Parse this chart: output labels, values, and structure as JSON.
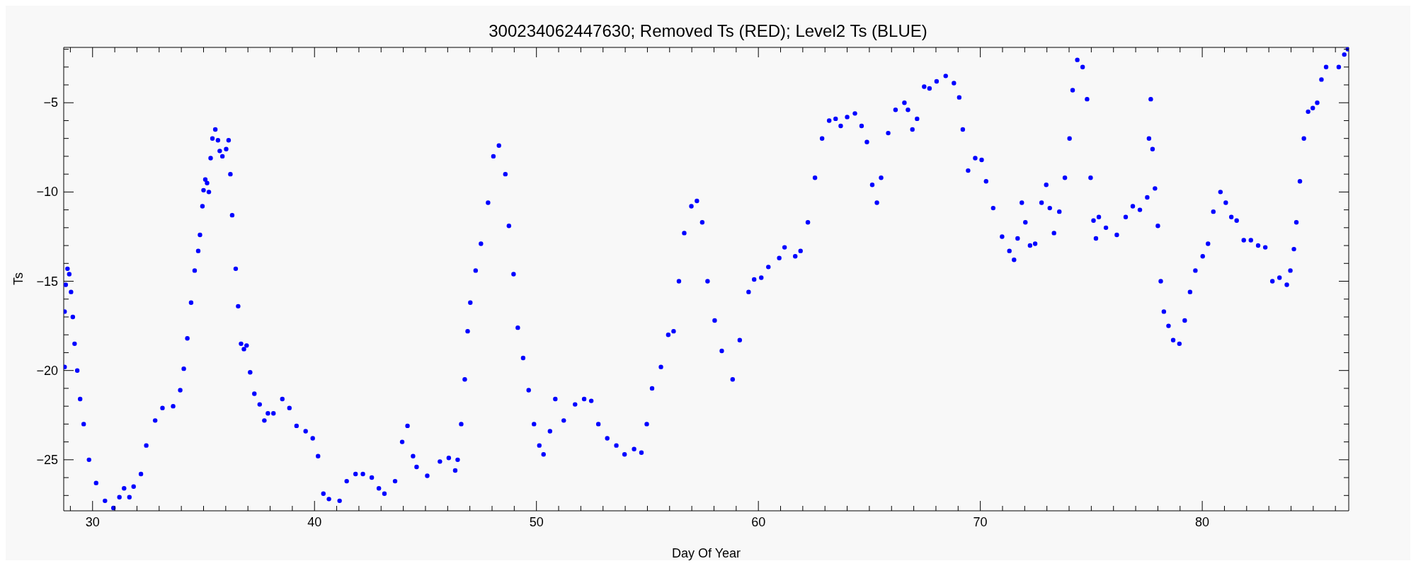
{
  "chart_data": {
    "type": "scatter",
    "title": "300234062447630; Removed Ts (RED); Level2 Ts (BLUE)",
    "xlabel": "Day Of Year",
    "ylabel": "Ts",
    "xlim": [
      28.7,
      86.6
    ],
    "ylim": [
      -27.86,
      -1.9
    ],
    "xticks": [
      {
        "value": 29,
        "label": null
      },
      30,
      {
        "value": 31,
        "label": null
      },
      {
        "value": 32,
        "label": null
      },
      {
        "value": 33,
        "label": null
      },
      {
        "value": 34,
        "label": null
      },
      {
        "value": 35,
        "label": null
      },
      {
        "value": 36,
        "label": null
      },
      {
        "value": 37,
        "label": null
      },
      {
        "value": 38,
        "label": null
      },
      {
        "value": 39,
        "label": null
      },
      40,
      {
        "value": 41,
        "label": null
      },
      {
        "value": 42,
        "label": null
      },
      {
        "value": 43,
        "label": null
      },
      {
        "value": 44,
        "label": null
      },
      {
        "value": 45,
        "label": null
      },
      {
        "value": 46,
        "label": null
      },
      {
        "value": 47,
        "label": null
      },
      {
        "value": 48,
        "label": null
      },
      {
        "value": 49,
        "label": null
      },
      50,
      {
        "value": 51,
        "label": null
      },
      {
        "value": 52,
        "label": null
      },
      {
        "value": 53,
        "label": null
      },
      {
        "value": 54,
        "label": null
      },
      {
        "value": 55,
        "label": null
      },
      {
        "value": 56,
        "label": null
      },
      {
        "value": 57,
        "label": null
      },
      {
        "value": 58,
        "label": null
      },
      {
        "value": 59,
        "label": null
      },
      60,
      {
        "value": 61,
        "label": null
      },
      {
        "value": 62,
        "label": null
      },
      {
        "value": 63,
        "label": null
      },
      {
        "value": 64,
        "label": null
      },
      {
        "value": 65,
        "label": null
      },
      {
        "value": 66,
        "label": null
      },
      {
        "value": 67,
        "label": null
      },
      {
        "value": 68,
        "label": null
      },
      {
        "value": 69,
        "label": null
      },
      70,
      {
        "value": 71,
        "label": null
      },
      {
        "value": 72,
        "label": null
      },
      {
        "value": 73,
        "label": null
      },
      {
        "value": 74,
        "label": null
      },
      {
        "value": 75,
        "label": null
      },
      {
        "value": 76,
        "label": null
      },
      {
        "value": 77,
        "label": null
      },
      {
        "value": 78,
        "label": null
      },
      {
        "value": 79,
        "label": null
      },
      80,
      {
        "value": 81,
        "label": null
      },
      {
        "value": 82,
        "label": null
      },
      {
        "value": 83,
        "label": null
      },
      {
        "value": 84,
        "label": null
      },
      {
        "value": 85,
        "label": null
      },
      {
        "value": 86,
        "label": null
      }
    ],
    "yticks": [
      {
        "value": -27,
        "label": null
      },
      {
        "value": -26,
        "label": null
      },
      -25,
      {
        "value": -24,
        "label": null
      },
      {
        "value": -23,
        "label": null
      },
      {
        "value": -22,
        "label": null
      },
      {
        "value": -21,
        "label": null
      },
      -20,
      {
        "value": -19,
        "label": null
      },
      {
        "value": -18,
        "label": null
      },
      {
        "value": -17,
        "label": null
      },
      {
        "value": -16,
        "label": null
      },
      -15,
      {
        "value": -14,
        "label": null
      },
      {
        "value": -13,
        "label": null
      },
      {
        "value": -12,
        "label": null
      },
      {
        "value": -11,
        "label": null
      },
      -10,
      {
        "value": -9,
        "label": null
      },
      {
        "value": -8,
        "label": null
      },
      {
        "value": -7,
        "label": null
      },
      {
        "value": -6,
        "label": null
      },
      -5,
      {
        "value": -4,
        "label": null
      },
      {
        "value": -3,
        "label": null
      },
      {
        "value": -2,
        "label": null
      }
    ],
    "marker": "circle",
    "series": [
      {
        "color": "#0000ff",
        "x": [
          28.74,
          28.74,
          28.79,
          28.87,
          28.95,
          29.03,
          29.11,
          29.19,
          29.31,
          29.44,
          29.6,
          29.84,
          30.16,
          30.56,
          30.94,
          31.21,
          31.42,
          31.66,
          31.85,
          32.18,
          32.42,
          32.82,
          33.15,
          33.63,
          33.95,
          34.11,
          34.27,
          34.44,
          34.6,
          34.76,
          34.84,
          34.95,
          35.0,
          35.08,
          35.16,
          35.24,
          35.32,
          35.4,
          35.53,
          35.65,
          35.73,
          35.85,
          36.02,
          36.13,
          36.21,
          36.29,
          36.45,
          36.56,
          36.69,
          36.82,
          36.94,
          37.1,
          37.29,
          37.53,
          37.74,
          37.9,
          38.15,
          38.55,
          38.87,
          39.19,
          39.6,
          39.92,
          40.16,
          40.4,
          40.65,
          41.13,
          41.45,
          41.85,
          42.18,
          42.58,
          42.9,
          43.15,
          43.63,
          43.95,
          44.19,
          44.44,
          44.6,
          45.08,
          45.65,
          46.05,
          46.34,
          46.45,
          46.61,
          46.77,
          46.9,
          47.02,
          47.26,
          47.5,
          47.82,
          48.06,
          48.31,
          48.6,
          48.76,
          48.97,
          49.16,
          49.4,
          49.65,
          49.89,
          50.13,
          50.32,
          50.61,
          50.85,
          51.23,
          51.74,
          52.15,
          52.47,
          52.79,
          53.19,
          53.6,
          53.97,
          54.4,
          54.73,
          54.97,
          55.21,
          55.61,
          55.94,
          56.18,
          56.42,
          56.66,
          56.98,
          57.23,
          57.47,
          57.71,
          58.03,
          58.35,
          58.84,
          59.16,
          59.56,
          59.81,
          60.13,
          60.45,
          60.94,
          61.18,
          61.66,
          61.9,
          62.23,
          62.55,
          62.87,
          63.19,
          63.48,
          63.71,
          64.0,
          64.35,
          64.65,
          64.89,
          65.13,
          65.34,
          65.53,
          65.85,
          66.18,
          66.58,
          66.74,
          66.94,
          67.15,
          67.47,
          67.71,
          68.03,
          68.44,
          68.81,
          69.05,
          69.21,
          69.45,
          69.77,
          70.06,
          70.26,
          70.58,
          70.98,
          71.31,
          71.52,
          71.68,
          71.87,
          72.03,
          72.24,
          72.47,
          72.76,
          72.97,
          73.13,
          73.32,
          73.56,
          73.81,
          74.02,
          74.16,
          74.37,
          74.61,
          74.81,
          74.97,
          75.1,
          75.21,
          75.34,
          75.66,
          76.15,
          76.55,
          76.87,
          77.19,
          77.52,
          77.6,
          77.68,
          77.76,
          77.87,
          78.0,
          78.13,
          78.27,
          78.48,
          78.69,
          78.97,
          79.21,
          79.45,
          79.69,
          80.02,
          80.26,
          80.5,
          80.82,
          81.06,
          81.31,
          81.55,
          81.87,
          82.19,
          82.52,
          82.84,
          83.16,
          83.48,
          83.81,
          83.97,
          84.13,
          84.24,
          84.4,
          84.58,
          84.77,
          84.98,
          85.18,
          85.37,
          85.58,
          86.15,
          86.4,
          86.56
        ],
        "values": [
          -19.8,
          -16.7,
          -15.2,
          -14.3,
          -14.6,
          -15.6,
          -17.0,
          -18.5,
          -20.0,
          -21.6,
          -23.0,
          -25.0,
          -26.3,
          -27.3,
          -27.7,
          -27.1,
          -26.6,
          -27.1,
          -26.5,
          -25.8,
          -24.2,
          -22.8,
          -22.1,
          -22.0,
          -21.1,
          -19.9,
          -18.2,
          -16.2,
          -14.4,
          -13.3,
          -12.4,
          -10.8,
          -9.9,
          -9.3,
          -9.5,
          -10.0,
          -8.1,
          -7.0,
          -6.5,
          -7.1,
          -7.7,
          -8.0,
          -7.6,
          -7.1,
          -9.0,
          -11.3,
          -14.3,
          -16.4,
          -18.5,
          -18.8,
          -18.6,
          -20.1,
          -21.3,
          -21.9,
          -22.8,
          -22.4,
          -22.4,
          -21.6,
          -22.1,
          -23.1,
          -23.4,
          -23.8,
          -24.8,
          -26.9,
          -27.2,
          -27.3,
          -26.2,
          -25.8,
          -25.8,
          -26.0,
          -26.6,
          -26.9,
          -26.2,
          -24.0,
          -23.1,
          -24.8,
          -25.4,
          -25.9,
          -25.1,
          -24.9,
          -25.6,
          -25.0,
          -23.0,
          -20.5,
          -17.8,
          -16.2,
          -14.4,
          -12.9,
          -10.6,
          -8.0,
          -7.4,
          -9.0,
          -11.9,
          -14.6,
          -17.6,
          -19.3,
          -21.1,
          -23.0,
          -24.2,
          -24.7,
          -23.4,
          -21.6,
          -22.8,
          -21.9,
          -21.6,
          -21.7,
          -23.0,
          -23.8,
          -24.2,
          -24.7,
          -24.4,
          -24.6,
          -23.0,
          -21.0,
          -19.8,
          -18.0,
          -17.8,
          -15.0,
          -12.3,
          -10.8,
          -10.5,
          -11.7,
          -15.0,
          -17.2,
          -18.9,
          -20.5,
          -18.3,
          -15.6,
          -14.9,
          -14.8,
          -14.2,
          -13.7,
          -13.1,
          -13.6,
          -13.3,
          -11.7,
          -9.2,
          -7.0,
          -6.0,
          -5.9,
          -6.3,
          -5.8,
          -5.6,
          -6.3,
          -7.2,
          -9.6,
          -10.6,
          -9.2,
          -6.7,
          -5.4,
          -5.0,
          -5.4,
          -6.5,
          -5.9,
          -4.1,
          -4.2,
          -3.8,
          -3.5,
          -3.9,
          -4.7,
          -6.5,
          -8.8,
          -8.1,
          -8.2,
          -9.4,
          -10.9,
          -12.5,
          -13.3,
          -13.8,
          -12.6,
          -10.6,
          -11.7,
          -13.0,
          -12.9,
          -10.6,
          -9.6,
          -10.9,
          -12.3,
          -11.1,
          -9.2,
          -7.0,
          -4.3,
          -2.6,
          -3.0,
          -4.8,
          -9.2,
          -11.6,
          -12.6,
          -11.4,
          -12.0,
          -12.4,
          -11.4,
          -10.8,
          -11.0,
          -10.3,
          -7.0,
          -4.8,
          -7.6,
          -9.8,
          -11.9,
          -15.0,
          -16.7,
          -17.5,
          -18.3,
          -18.5,
          -17.2,
          -15.6,
          -14.4,
          -13.6,
          -12.9,
          -11.1,
          -10.0,
          -10.6,
          -11.4,
          -11.6,
          -12.7,
          -12.7,
          -13.0,
          -13.1,
          -15.0,
          -14.8,
          -15.2,
          -14.4,
          -13.2,
          -11.7,
          -9.4,
          -7.0,
          -5.5,
          -5.3,
          -5.0,
          -3.7,
          -3.0,
          -3.0,
          -2.3,
          -2.0
        ]
      }
    ]
  }
}
